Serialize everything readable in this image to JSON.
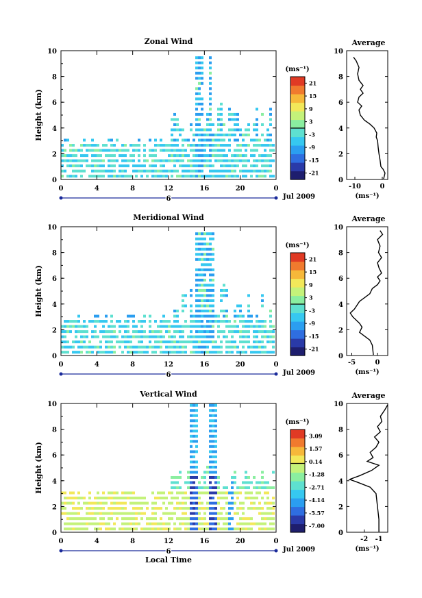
{
  "chart_data": [
    {
      "type": "heatmap",
      "title": "Zonal Wind",
      "ylabel": "Height (km)",
      "xlabel": "",
      "x_ticks": [
        "0",
        "4",
        "8",
        "12",
        "16",
        "20",
        "0"
      ],
      "y_ticks": [
        "0",
        "2",
        "4",
        "6",
        "8",
        "10"
      ],
      "date_label": "Jul 2009",
      "day_label": "6",
      "colorbar": {
        "unit": "(ms⁻¹)",
        "ticks": [
          "21",
          "15",
          "9",
          "3",
          "-3",
          "-9",
          "-15",
          "-21"
        ],
        "range": [
          -24,
          24
        ]
      },
      "profile": {
        "title": "Average",
        "xlabel": "(ms⁻¹)",
        "x_ticks": [
          "-10",
          "0"
        ],
        "y_ticks": [
          "0",
          "2",
          "4",
          "6",
          "8",
          "10"
        ],
        "xlim": [
          -13,
          2
        ],
        "points": [
          [
            0.5,
            0.05
          ],
          [
            1.0,
            0.5
          ],
          [
            0.3,
            0.8
          ],
          [
            -0.5,
            1.0
          ],
          [
            -0.8,
            1.5
          ],
          [
            -1.2,
            2.0
          ],
          [
            -1.5,
            2.5
          ],
          [
            -1.7,
            3.0
          ],
          [
            -2.2,
            3.3
          ],
          [
            -2.0,
            3.6
          ],
          [
            -3.0,
            4.0
          ],
          [
            -4.5,
            4.3
          ],
          [
            -6.5,
            4.6
          ],
          [
            -8.0,
            5.0
          ],
          [
            -8.5,
            5.4
          ],
          [
            -7.5,
            5.7
          ],
          [
            -9.0,
            6.0
          ],
          [
            -8.5,
            6.4
          ],
          [
            -7.0,
            6.7
          ],
          [
            -8.0,
            7.0
          ],
          [
            -7.0,
            7.3
          ],
          [
            -8.5,
            7.7
          ],
          [
            -9.0,
            8.2
          ],
          [
            -8.5,
            8.7
          ],
          [
            -9.5,
            9.2
          ],
          [
            -10.5,
            9.5
          ]
        ]
      }
    },
    {
      "type": "heatmap",
      "title": "Meridional Wind",
      "ylabel": "Height (km)",
      "xlabel": "",
      "x_ticks": [
        "0",
        "4",
        "8",
        "12",
        "16",
        "20",
        "0"
      ],
      "y_ticks": [
        "0",
        "2",
        "4",
        "6",
        "8",
        "10"
      ],
      "date_label": "Jul 2009",
      "day_label": "6",
      "colorbar": {
        "unit": "(ms⁻¹)",
        "ticks": [
          "21",
          "15",
          "9",
          "3",
          "-3",
          "-9",
          "-15",
          "-21"
        ],
        "range": [
          -24,
          24
        ]
      },
      "profile": {
        "title": "Average",
        "xlabel": "(ms⁻¹)",
        "x_ticks": [
          "-5",
          "0"
        ],
        "y_ticks": [
          "0",
          "2",
          "4",
          "6",
          "8",
          "10"
        ],
        "xlim": [
          -6,
          2
        ],
        "points": [
          [
            -0.8,
            0.05
          ],
          [
            -1.0,
            0.8
          ],
          [
            -1.5,
            1.2
          ],
          [
            -2.5,
            1.5
          ],
          [
            -3.5,
            1.8
          ],
          [
            -3.0,
            2.2
          ],
          [
            -3.5,
            2.5
          ],
          [
            -4.8,
            3.0
          ],
          [
            -5.3,
            3.3
          ],
          [
            -4.5,
            3.6
          ],
          [
            -4.0,
            3.9
          ],
          [
            -3.5,
            4.2
          ],
          [
            -2.5,
            4.5
          ],
          [
            -1.5,
            4.8
          ],
          [
            -1.0,
            5.2
          ],
          [
            0.0,
            5.5
          ],
          [
            0.5,
            5.8
          ],
          [
            0.0,
            6.1
          ],
          [
            0.8,
            6.4
          ],
          [
            0.3,
            6.8
          ],
          [
            0.0,
            7.2
          ],
          [
            0.8,
            7.6
          ],
          [
            0.2,
            8.0
          ],
          [
            0.5,
            8.5
          ],
          [
            0.0,
            9.0
          ],
          [
            1.0,
            9.4
          ],
          [
            0.5,
            9.7
          ]
        ]
      }
    },
    {
      "type": "heatmap",
      "title": "Vertical Wind",
      "ylabel": "Height (km)",
      "xlabel": "Local Time",
      "x_ticks": [
        "0",
        "4",
        "8",
        "12",
        "16",
        "20",
        "0"
      ],
      "y_ticks": [
        "0",
        "2",
        "4",
        "6",
        "8",
        "10"
      ],
      "date_label": "Jul 2009",
      "day_label": "6",
      "colorbar": {
        "unit": "(ms⁻¹)",
        "ticks": [
          "3.09",
          "1.57",
          "0.14",
          "-1.28",
          "-2.71",
          "-4.14",
          "-5.57",
          "-7.00"
        ],
        "range": [
          -7.71,
          3.8
        ]
      },
      "profile": {
        "title": "Average",
        "xlabel": "(ms⁻¹)",
        "x_ticks": [
          "-2",
          "-1"
        ],
        "y_ticks": [
          "0",
          "2",
          "4",
          "6",
          "8",
          "10"
        ],
        "xlim": [
          -3.2,
          -0.4
        ],
        "points": [
          [
            -1.0,
            0.05
          ],
          [
            -1.0,
            1.0
          ],
          [
            -1.1,
            2.0
          ],
          [
            -1.2,
            3.0
          ],
          [
            -1.6,
            3.5
          ],
          [
            -2.5,
            3.9
          ],
          [
            -3.0,
            4.1
          ],
          [
            -2.3,
            4.4
          ],
          [
            -1.5,
            4.8
          ],
          [
            -1.0,
            5.2
          ],
          [
            -1.8,
            5.5
          ],
          [
            -1.4,
            5.8
          ],
          [
            -1.6,
            6.2
          ],
          [
            -1.2,
            6.6
          ],
          [
            -1.0,
            7.0
          ],
          [
            -1.3,
            7.4
          ],
          [
            -0.9,
            7.8
          ],
          [
            -1.1,
            8.2
          ],
          [
            -0.8,
            8.6
          ],
          [
            -0.9,
            9.0
          ],
          [
            -0.6,
            9.5
          ],
          [
            -0.4,
            9.9
          ]
        ]
      }
    }
  ]
}
